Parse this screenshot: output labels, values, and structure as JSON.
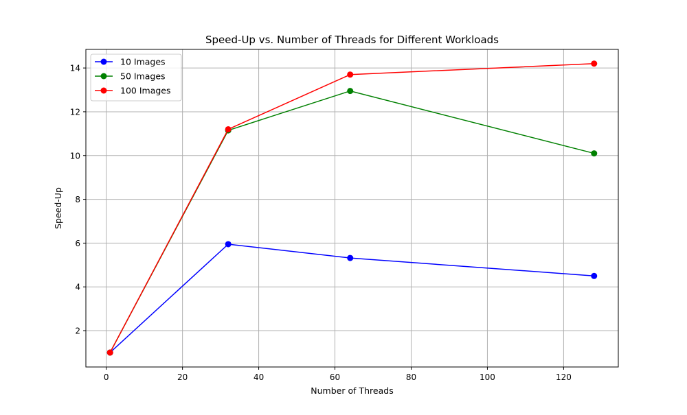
{
  "chart_data": {
    "type": "line",
    "title": "Speed-Up vs. Number of Threads for Different Workloads",
    "xlabel": "Number of Threads",
    "ylabel": "Speed-Up",
    "x": [
      1,
      32,
      64,
      128
    ],
    "xlim": [
      -5.35,
      134.35
    ],
    "ylim": [
      0.34,
      14.85
    ],
    "xticks": [
      0,
      20,
      40,
      60,
      80,
      100,
      120
    ],
    "yticks": [
      2,
      4,
      6,
      8,
      10,
      12,
      14
    ],
    "grid": true,
    "legend_position": "top-left",
    "series": [
      {
        "name": "10 Images",
        "color": "#0000ff",
        "values": [
          1.0,
          5.95,
          5.32,
          4.5
        ]
      },
      {
        "name": "50 Images",
        "color": "#008000",
        "values": [
          1.0,
          11.15,
          12.95,
          10.1
        ]
      },
      {
        "name": "100 Images",
        "color": "#ff0000",
        "values": [
          1.0,
          11.2,
          13.7,
          14.2
        ]
      }
    ]
  }
}
